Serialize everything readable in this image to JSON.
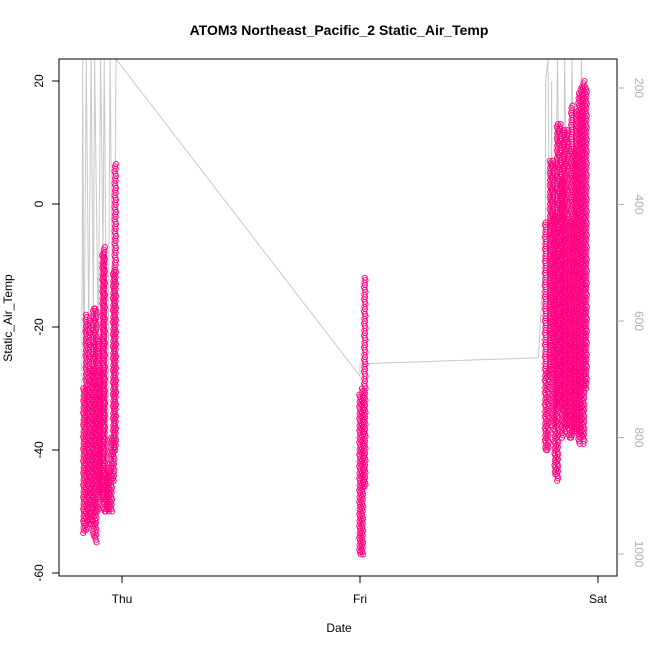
{
  "chart_data": {
    "type": "scatter",
    "title": "ATOM3 Northeast_Pacific_2 Static_Air_Temp",
    "xlabel": "Date",
    "ylabel": "Static_Air_Temp",
    "x_ticks": [
      "Thu",
      "Fri",
      "Sat"
    ],
    "y_ticks": [
      -60,
      -40,
      -20,
      0,
      20
    ],
    "ylim": [
      -60,
      24
    ],
    "y2_ticks": [
      200,
      400,
      600,
      800,
      1000
    ],
    "y2lim": [
      1030,
      170
    ],
    "y2_reversed": true,
    "grid": false,
    "marker_color": "#ff0080",
    "line_color": "#c8c8c8",
    "point_clusters": [
      {
        "x": -0.16,
        "ymin": -53.5,
        "ymax": -30
      },
      {
        "x": -0.15,
        "ymin": -53,
        "ymax": -18
      },
      {
        "x": -0.14,
        "ymin": -52,
        "ymax": -19
      },
      {
        "x": -0.13,
        "ymin": -52,
        "ymax": -27
      },
      {
        "x": -0.12,
        "ymin": -54,
        "ymax": -17
      },
      {
        "x": -0.11,
        "ymin": -55,
        "ymax": -17
      },
      {
        "x": -0.1,
        "ymin": -50,
        "ymax": -22
      },
      {
        "x": -0.09,
        "ymin": -47,
        "ymax": -27
      },
      {
        "x": -0.08,
        "ymin": -48,
        "ymax": -8
      },
      {
        "x": -0.075,
        "ymin": -50,
        "ymax": -7
      },
      {
        "x": -0.065,
        "ymin": -50,
        "ymax": -44
      },
      {
        "x": -0.055,
        "ymin": -50,
        "ymax": -43
      },
      {
        "x": -0.045,
        "ymin": -50,
        "ymax": -38
      },
      {
        "x": -0.035,
        "ymin": -45,
        "ymax": -11
      },
      {
        "x": -0.028,
        "ymin": -40,
        "ymax": 6.5
      },
      {
        "x": 1.0,
        "ymin": -57,
        "ymax": -31
      },
      {
        "x": 1.01,
        "ymin": -57,
        "ymax": -30
      },
      {
        "x": 1.02,
        "ymin": -46,
        "ymax": -12
      },
      {
        "x": 1.78,
        "ymin": -40,
        "ymax": -3
      },
      {
        "x": 1.79,
        "ymin": -40,
        "ymax": -27
      },
      {
        "x": 1.8,
        "ymin": -28,
        "ymax": 7
      },
      {
        "x": 1.81,
        "ymin": -36,
        "ymax": 7
      },
      {
        "x": 1.82,
        "ymin": -44,
        "ymax": -2
      },
      {
        "x": 1.83,
        "ymin": -45,
        "ymax": 13
      },
      {
        "x": 1.84,
        "ymin": -33,
        "ymax": 13
      },
      {
        "x": 1.85,
        "ymin": -38,
        "ymax": 4
      },
      {
        "x": 1.86,
        "ymin": -37,
        "ymax": 12
      },
      {
        "x": 1.87,
        "ymin": -36,
        "ymax": 12
      },
      {
        "x": 1.88,
        "ymin": -38,
        "ymax": -3
      },
      {
        "x": 1.89,
        "ymin": -38,
        "ymax": 16
      },
      {
        "x": 1.9,
        "ymin": -37,
        "ymax": 9
      },
      {
        "x": 1.91,
        "ymin": -37,
        "ymax": 15
      },
      {
        "x": 1.92,
        "ymin": -39,
        "ymax": 18
      },
      {
        "x": 1.93,
        "ymin": -38,
        "ymax": 19
      },
      {
        "x": 1.94,
        "ymin": -39,
        "ymax": 20
      },
      {
        "x": 1.95,
        "ymin": -30,
        "ymax": 19
      }
    ]
  }
}
